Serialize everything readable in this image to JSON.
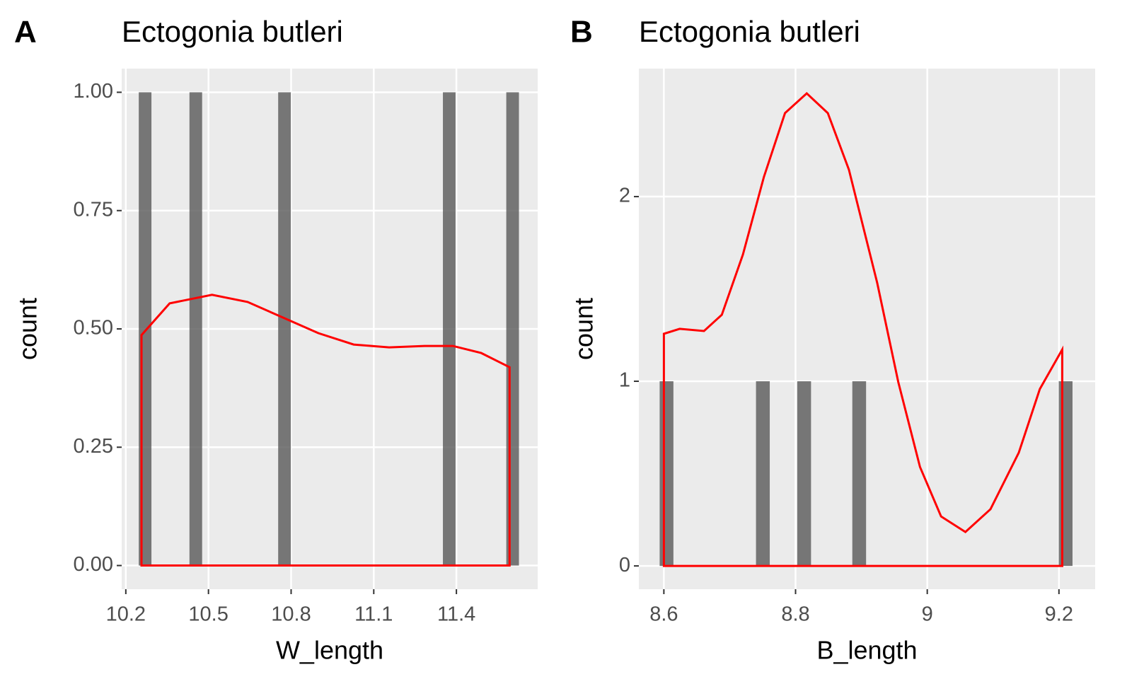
{
  "chart_data": [
    {
      "type": "histogram",
      "panel_label": "A",
      "title": "Ectogonia butleri",
      "xlabel": "W_length",
      "ylabel": "count",
      "bins": [
        10.247,
        10.293,
        10.339,
        10.385,
        10.431,
        10.477,
        10.523,
        10.569,
        10.615,
        10.661,
        10.707,
        10.753,
        10.799,
        10.845,
        10.891,
        10.937,
        10.983,
        11.029,
        11.075,
        11.121,
        11.167,
        11.213,
        11.259,
        11.305,
        11.351,
        11.397,
        11.443,
        11.489,
        11.535,
        11.581,
        11.627
      ],
      "counts": [
        1,
        0,
        0,
        0,
        1,
        0,
        0,
        0,
        0,
        0,
        0,
        1,
        0,
        0,
        0,
        0,
        0,
        0,
        0,
        0,
        0,
        0,
        0,
        0,
        1,
        0,
        0,
        0,
        0,
        1
      ],
      "bar_color": "#595959",
      "density": {
        "color": "#ff0000",
        "x": [
          10.257,
          10.257,
          10.359,
          10.513,
          10.642,
          10.77,
          10.899,
          11.027,
          11.156,
          11.284,
          11.387,
          11.49,
          11.593,
          11.593
        ],
        "values": [
          0,
          0.487,
          0.554,
          0.572,
          0.557,
          0.524,
          0.491,
          0.467,
          0.461,
          0.464,
          0.464,
          0.449,
          0.419,
          0
        ]
      },
      "xlim": [
        10.185,
        11.695
      ],
      "ylim": [
        -0.05,
        1.05
      ],
      "xticks": [
        10.2,
        10.5,
        10.8,
        11.1,
        11.4
      ],
      "yticks": [
        {
          "value": 0,
          "label": "0.00"
        },
        {
          "value": 0.25,
          "label": "0.25"
        },
        {
          "value": 0.5,
          "label": "0.50"
        },
        {
          "value": 0.75,
          "label": "0.75"
        },
        {
          "value": 1,
          "label": "1.00"
        }
      ],
      "grid": true
    },
    {
      "type": "histogram",
      "panel_label": "B",
      "title": "Ectogonia butleri",
      "xlabel": "B_length",
      "ylabel": "count",
      "bins": [
        8.5936,
        8.6145,
        8.6354,
        8.6563,
        8.6772,
        8.6981,
        8.719,
        8.7399,
        8.7608,
        8.7817,
        8.8026,
        8.8235,
        8.8444,
        8.8653,
        8.8862,
        8.9071,
        8.928,
        8.9489,
        8.9698,
        8.9907,
        9.0116,
        9.0325,
        9.0534,
        9.0743,
        9.0952,
        9.1161,
        9.137,
        9.1579,
        9.1788,
        9.1997,
        9.2206
      ],
      "counts": [
        1,
        0,
        0,
        0,
        0,
        0,
        0,
        1,
        0,
        0,
        1,
        0,
        0,
        0,
        1,
        0,
        0,
        0,
        0,
        0,
        0,
        0,
        0,
        0,
        0,
        0,
        0,
        0,
        0,
        1
      ],
      "bar_color": "#595959",
      "density": {
        "color": "#ff0000",
        "x": [
          8.6,
          8.6,
          8.624,
          8.661,
          8.688,
          8.72,
          8.752,
          8.784,
          8.817,
          8.849,
          8.881,
          8.924,
          8.956,
          8.989,
          9.021,
          9.058,
          9.096,
          9.139,
          9.171,
          9.205,
          9.205
        ],
        "values": [
          0,
          1.257,
          1.284,
          1.272,
          1.36,
          1.686,
          2.107,
          2.452,
          2.559,
          2.452,
          2.146,
          1.533,
          0.996,
          0.536,
          0.268,
          0.184,
          0.307,
          0.613,
          0.958,
          1.172,
          0
        ]
      },
      "xlim": [
        8.562,
        9.255
      ],
      "ylim": [
        -0.126,
        2.693
      ],
      "xticks": [
        8.6,
        8.8,
        9,
        9.2
      ],
      "yticks": [
        0,
        1,
        2
      ],
      "grid": true
    }
  ]
}
